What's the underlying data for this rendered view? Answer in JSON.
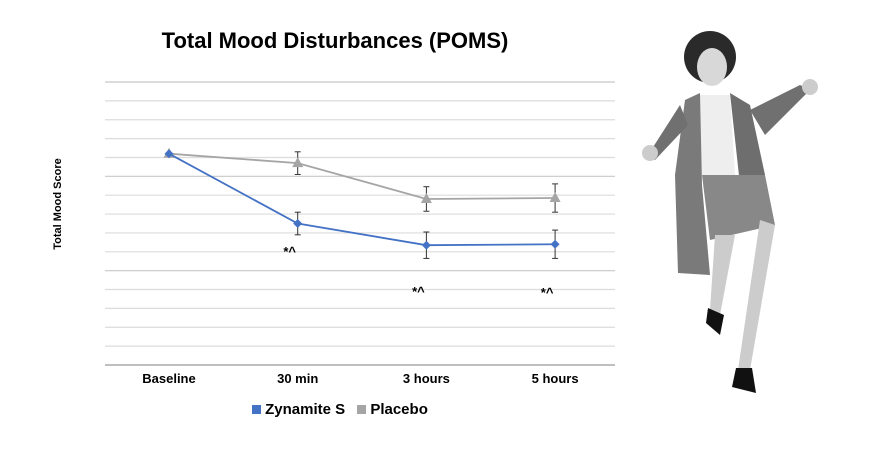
{
  "chart_data": {
    "type": "line",
    "title": "Total Mood Disturbances (POMS)",
    "xlabel": "",
    "ylabel": "Total Mood Score",
    "categories": [
      "Baseline",
      "30 min",
      "3 hours",
      "5 hours"
    ],
    "ylim": [
      0,
      15
    ],
    "grid": true,
    "y_tick_labels_shown": false,
    "legend_placement": "bottom",
    "series": [
      {
        "name": "Zynamite S",
        "color": "#4472C4",
        "marker": "diamond",
        "values": [
          11.2,
          7.5,
          6.35,
          6.4
        ],
        "error": [
          0,
          0.6,
          0.7,
          0.75
        ]
      },
      {
        "name": "Placebo",
        "color": "#A5A5A5",
        "marker": "triangle",
        "values": [
          11.2,
          10.7,
          8.8,
          8.85
        ],
        "error": [
          0,
          0.6,
          0.65,
          0.75
        ]
      }
    ],
    "annotations": [
      {
        "category": "30 min",
        "text": "*^"
      },
      {
        "category": "3 hours",
        "text": "*^"
      },
      {
        "category": "5 hours",
        "text": "*^"
      }
    ]
  },
  "photo": {
    "description_icon": "person-celebrating-photo"
  }
}
